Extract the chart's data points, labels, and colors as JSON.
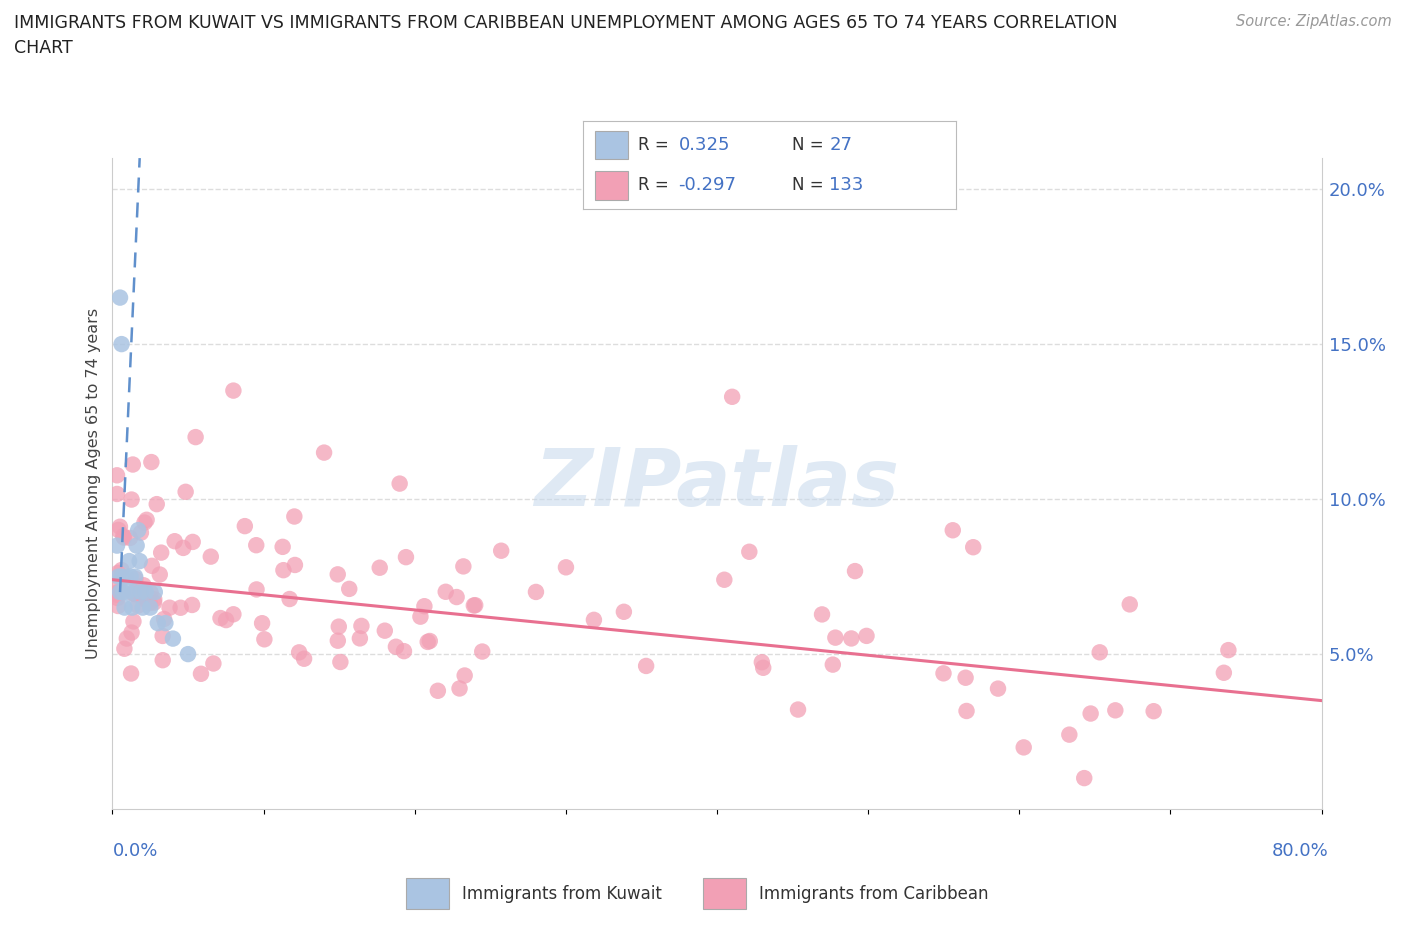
{
  "title_line1": "IMMIGRANTS FROM KUWAIT VS IMMIGRANTS FROM CARIBBEAN UNEMPLOYMENT AMONG AGES 65 TO 74 YEARS CORRELATION",
  "title_line2": "CHART",
  "source": "Source: ZipAtlas.com",
  "ylabel": "Unemployment Among Ages 65 to 74 years",
  "xlim": [
    0.0,
    80.0
  ],
  "ylim": [
    0.0,
    21.0
  ],
  "ytick_vals": [
    5.0,
    10.0,
    15.0,
    20.0
  ],
  "ytick_labels": [
    "5.0%",
    "10.0%",
    "15.0%",
    "20.0%"
  ],
  "kuwait_color": "#aac4e2",
  "caribbean_color": "#f2a0b5",
  "kuwait_trend_color": "#6090cc",
  "caribbean_trend_color": "#e87090",
  "kuwait_R": "0.325",
  "kuwait_N": "27",
  "caribbean_R": "-0.297",
  "caribbean_N": "133",
  "legend_label_color": "#333333",
  "legend_value_color": "#4472c4",
  "watermark": "ZIPatlas",
  "watermark_color": "#c5d8ec",
  "background_color": "#ffffff",
  "grid_color": "#dddddd",
  "axis_color": "#cccccc",
  "label_color": "#4472c4",
  "caribbean_trend_x0": 0.0,
  "caribbean_trend_y0": 7.4,
  "caribbean_trend_x1": 80.0,
  "caribbean_trend_y1": 3.5,
  "kuwait_trend_x0": 0.5,
  "kuwait_trend_y0": 7.0,
  "kuwait_trend_x1": 1.8,
  "kuwait_trend_y1": 21.0
}
